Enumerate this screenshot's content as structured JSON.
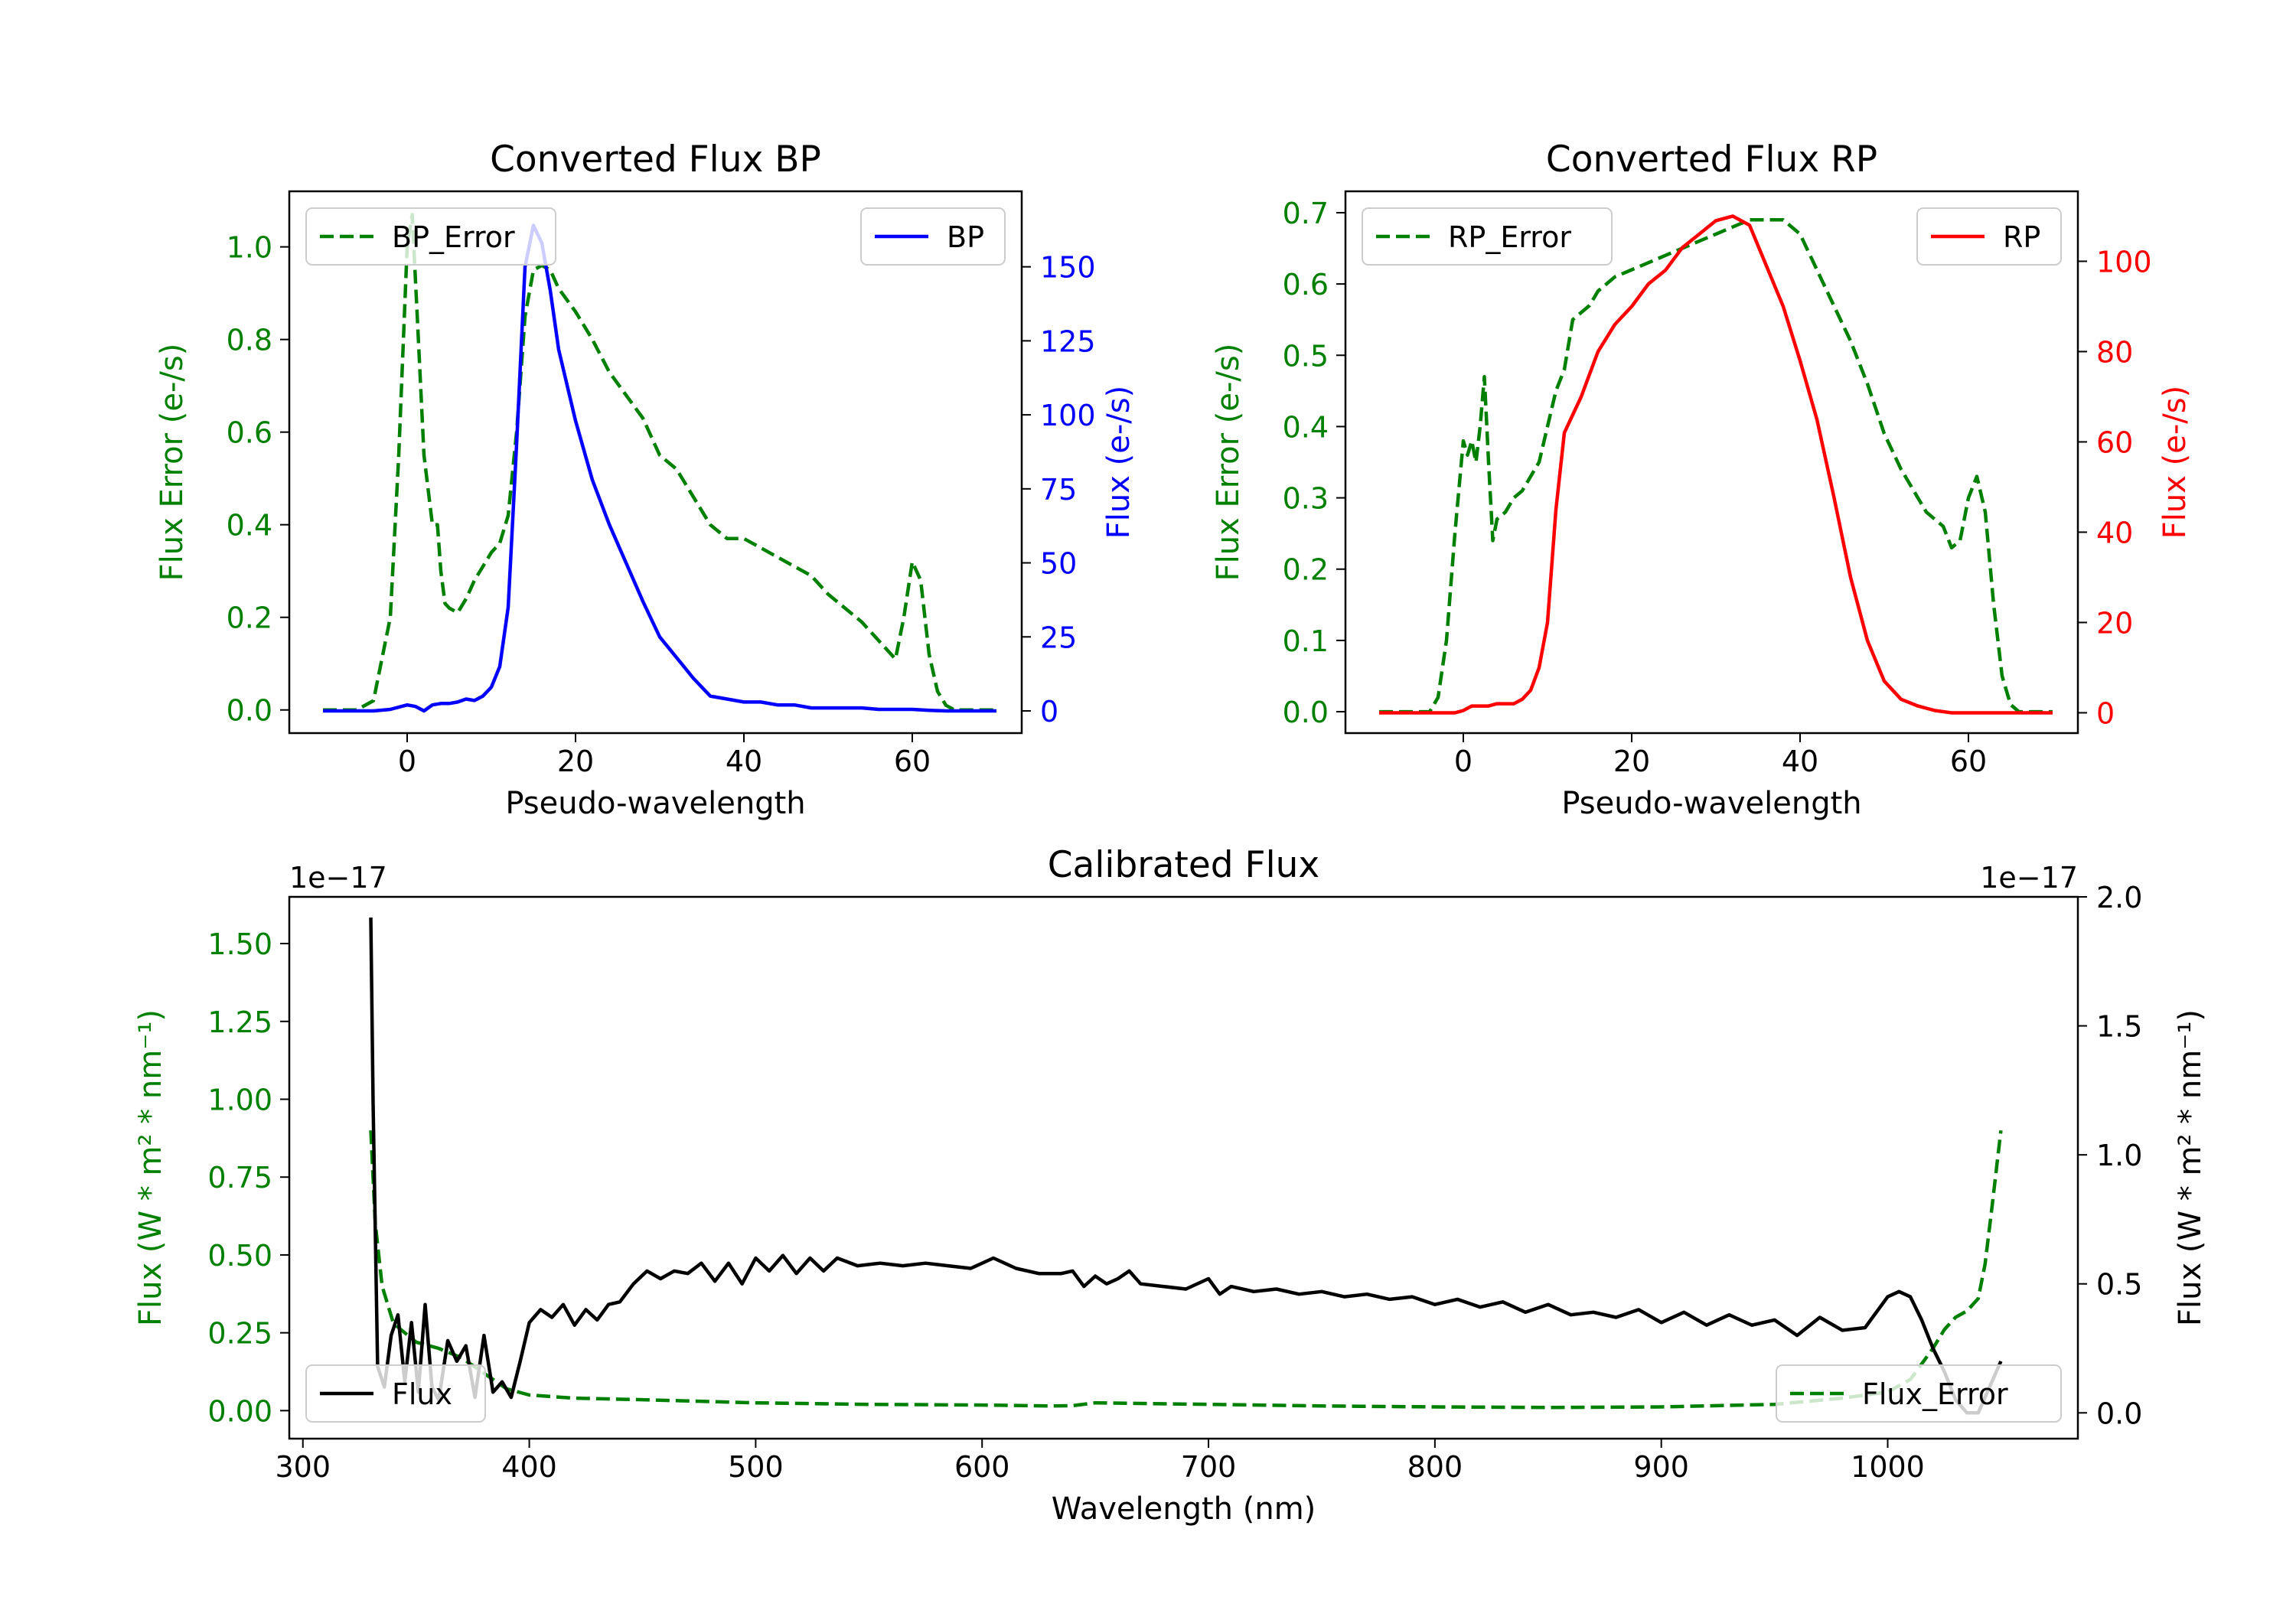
{
  "figure": {
    "background": "#ffffff"
  },
  "chart_data": [
    {
      "id": "bp",
      "type": "line",
      "title": "Converted Flux BP",
      "xlabel": "Pseudo-wavelength",
      "ylabel_left": "Flux Error (e-/s)",
      "ylabel_right": "Flux (e-/s)",
      "xlim": [
        -14,
        73
      ],
      "ylim_left": [
        -0.05,
        1.12
      ],
      "ylim_right": [
        -7.5,
        175.5
      ],
      "xticks": [
        0,
        20,
        40,
        60
      ],
      "xtick_labels": [
        "0",
        "20",
        "40",
        "60"
      ],
      "yticks_left": [
        0.0,
        0.2,
        0.4,
        0.6,
        0.8,
        1.0
      ],
      "ytick_labels_left": [
        "0.0",
        "0.2",
        "0.4",
        "0.6",
        "0.8",
        "1.0"
      ],
      "yticks_right": [
        0,
        25,
        50,
        75,
        100,
        125,
        150
      ],
      "ytick_labels_right": [
        "0",
        "25",
        "50",
        "75",
        "100",
        "125",
        "150"
      ],
      "left_color": "#008000",
      "right_color": "#0000ff",
      "series": [
        {
          "name": "BP_Error",
          "axis": "left",
          "color": "#008000",
          "style": "dashed",
          "x": [
            -10,
            -6,
            -4,
            -2,
            -1,
            0,
            0.6,
            1.2,
            2,
            3,
            3.6,
            4,
            4.5,
            5,
            6,
            7,
            8,
            9,
            10,
            11,
            12,
            13,
            14,
            15,
            16,
            17,
            18,
            20,
            22,
            24,
            26,
            28,
            30,
            32,
            34,
            36,
            38,
            40,
            42,
            44,
            46,
            48,
            50,
            52,
            54,
            56,
            57,
            58,
            59,
            60,
            61,
            62,
            63,
            64,
            65,
            66,
            68,
            70
          ],
          "y": [
            0.0,
            0.0,
            0.02,
            0.2,
            0.55,
            1.0,
            1.07,
            0.85,
            0.55,
            0.4,
            0.4,
            0.3,
            0.23,
            0.22,
            0.21,
            0.24,
            0.28,
            0.31,
            0.34,
            0.36,
            0.42,
            0.6,
            0.85,
            0.95,
            0.96,
            0.95,
            0.91,
            0.86,
            0.8,
            0.73,
            0.68,
            0.63,
            0.55,
            0.52,
            0.46,
            0.4,
            0.37,
            0.37,
            0.35,
            0.33,
            0.31,
            0.29,
            0.25,
            0.22,
            0.19,
            0.15,
            0.13,
            0.11,
            0.2,
            0.32,
            0.28,
            0.12,
            0.04,
            0.01,
            0.0,
            0.0,
            0.0,
            0.0
          ]
        },
        {
          "name": "BP",
          "axis": "right",
          "color": "#0000ff",
          "style": "solid",
          "x": [
            -10,
            -4,
            -2,
            0,
            1,
            2,
            3,
            4,
            5,
            6,
            7,
            8,
            9,
            10,
            11,
            12,
            13,
            14,
            15,
            16,
            17,
            18,
            20,
            22,
            24,
            26,
            28,
            30,
            32,
            34,
            36,
            38,
            40,
            42,
            44,
            46,
            48,
            50,
            52,
            54,
            56,
            58,
            60,
            62,
            64,
            66,
            70
          ],
          "y": [
            0,
            0,
            0.5,
            2,
            1.5,
            0,
            2,
            2.5,
            2.5,
            3,
            4,
            3.5,
            5,
            8,
            15,
            35,
            90,
            150,
            164,
            158,
            142,
            122,
            98,
            78,
            63,
            50,
            37,
            25,
            18,
            11,
            5,
            4,
            3,
            3,
            2,
            2,
            1,
            1,
            1,
            1,
            0.5,
            0.5,
            0.5,
            0.2,
            0,
            0,
            0
          ]
        }
      ],
      "legends": [
        {
          "position": "upper left",
          "entries": [
            "BP_Error"
          ]
        },
        {
          "position": "upper right",
          "entries": [
            "BP"
          ]
        }
      ]
    },
    {
      "id": "rp",
      "type": "line",
      "title": "Converted Flux RP",
      "xlabel": "Pseudo-wavelength",
      "ylabel_left": "Flux Error (e-/s)",
      "ylabel_right": "Flux (e-/s)",
      "xlim": [
        -14,
        73
      ],
      "ylim_left": [
        -0.03,
        0.73
      ],
      "ylim_right": [
        -4.5,
        115.5
      ],
      "xticks": [
        0,
        20,
        40,
        60
      ],
      "xtick_labels": [
        "0",
        "20",
        "40",
        "60"
      ],
      "yticks_left": [
        0.0,
        0.1,
        0.2,
        0.3,
        0.4,
        0.5,
        0.6,
        0.7
      ],
      "ytick_labels_left": [
        "0.0",
        "0.1",
        "0.2",
        "0.3",
        "0.4",
        "0.5",
        "0.6",
        "0.7"
      ],
      "yticks_right": [
        0,
        20,
        40,
        60,
        80,
        100
      ],
      "ytick_labels_right": [
        "0",
        "20",
        "40",
        "60",
        "80",
        "100"
      ],
      "left_color": "#008000",
      "right_color": "#ff0000",
      "series": [
        {
          "name": "RP_Error",
          "axis": "left",
          "color": "#008000",
          "style": "dashed",
          "x": [
            -10,
            -5,
            -4,
            -3,
            -2,
            -1,
            0,
            0.5,
            1,
            1.5,
            2,
            2.5,
            3,
            3.5,
            4,
            5,
            6,
            7,
            8,
            9,
            10,
            11,
            12,
            13,
            14,
            15,
            16,
            17,
            18,
            20,
            22,
            24,
            26,
            28,
            30,
            32,
            34,
            36,
            38,
            40,
            42,
            44,
            46,
            48,
            50,
            52,
            54,
            55,
            56,
            57,
            58,
            59,
            60,
            61,
            62,
            63,
            64,
            65,
            66,
            68,
            70
          ],
          "y": [
            0.0,
            0.0,
            0.0,
            0.02,
            0.1,
            0.25,
            0.38,
            0.36,
            0.38,
            0.35,
            0.4,
            0.47,
            0.35,
            0.24,
            0.27,
            0.28,
            0.3,
            0.31,
            0.33,
            0.35,
            0.4,
            0.45,
            0.48,
            0.55,
            0.56,
            0.57,
            0.59,
            0.6,
            0.61,
            0.62,
            0.63,
            0.64,
            0.65,
            0.66,
            0.67,
            0.68,
            0.69,
            0.69,
            0.69,
            0.67,
            0.62,
            0.57,
            0.52,
            0.46,
            0.39,
            0.34,
            0.3,
            0.28,
            0.27,
            0.26,
            0.23,
            0.24,
            0.3,
            0.33,
            0.28,
            0.15,
            0.05,
            0.01,
            0.0,
            0.0,
            0.0
          ]
        },
        {
          "name": "RP",
          "axis": "right",
          "color": "#ff0000",
          "style": "solid",
          "x": [
            -10,
            -3,
            -1,
            0,
            1,
            2,
            3,
            4,
            5,
            6,
            7,
            8,
            9,
            10,
            11,
            12,
            13,
            14,
            15,
            16,
            18,
            20,
            22,
            24,
            26,
            28,
            30,
            32,
            33,
            34,
            36,
            38,
            40,
            42,
            44,
            46,
            48,
            50,
            52,
            54,
            56,
            58,
            60,
            62,
            66,
            70
          ],
          "y": [
            0,
            0,
            0,
            0.5,
            1.5,
            1.5,
            1.5,
            2,
            2,
            2,
            3,
            5,
            10,
            20,
            45,
            62,
            66,
            70,
            75,
            80,
            86,
            90,
            95,
            98,
            103,
            106,
            109,
            110,
            109,
            108,
            99,
            90,
            78,
            65,
            48,
            30,
            16,
            7,
            3,
            1.5,
            0.5,
            0,
            0,
            0,
            0,
            0
          ]
        }
      ],
      "legends": [
        {
          "position": "upper left",
          "entries": [
            "RP_Error"
          ]
        },
        {
          "position": "upper right",
          "entries": [
            "RP"
          ]
        }
      ]
    },
    {
      "id": "cal",
      "type": "line",
      "title": "Calibrated Flux",
      "xlabel": "Wavelength (nm)",
      "ylabel_left": "Flux (W * m² * nm⁻¹)",
      "ylabel_right": "Flux (W * m² * nm⁻¹)",
      "offset_left": "1e−17",
      "offset_right": "1e−17",
      "xlim": [
        294,
        1084
      ],
      "ylim_left": [
        -0.09,
        1.65
      ],
      "ylim_right": [
        -0.1,
        2.0
      ],
      "xticks": [
        300,
        400,
        500,
        600,
        700,
        800,
        900,
        1000
      ],
      "xtick_labels": [
        "300",
        "400",
        "500",
        "600",
        "700",
        "800",
        "900",
        "1000"
      ],
      "yticks_left": [
        0.0,
        0.25,
        0.5,
        0.75,
        1.0,
        1.25,
        1.5
      ],
      "ytick_labels_left": [
        "0.00",
        "0.25",
        "0.50",
        "0.75",
        "1.00",
        "1.25",
        "1.50"
      ],
      "yticks_right": [
        0.0,
        0.5,
        1.0,
        1.5,
        2.0
      ],
      "ytick_labels_right": [
        "0.0",
        "0.5",
        "1.0",
        "1.5",
        "2.0"
      ],
      "left_color": "#008000",
      "right_color": "#000000",
      "series": [
        {
          "name": "Flux_Error",
          "axis": "left",
          "color": "#008000",
          "style": "dashed",
          "x": [
            330,
            332,
            335,
            340,
            350,
            360,
            370,
            380,
            390,
            400,
            420,
            450,
            500,
            550,
            600,
            630,
            640,
            650,
            700,
            750,
            800,
            850,
            900,
            950,
            980,
            1000,
            1010,
            1020,
            1025,
            1030,
            1035,
            1040,
            1043,
            1046,
            1050
          ],
          "y": [
            0.9,
            0.6,
            0.4,
            0.28,
            0.22,
            0.2,
            0.17,
            0.12,
            0.07,
            0.05,
            0.04,
            0.035,
            0.025,
            0.02,
            0.018,
            0.015,
            0.016,
            0.025,
            0.02,
            0.015,
            0.012,
            0.01,
            0.012,
            0.02,
            0.04,
            0.06,
            0.1,
            0.2,
            0.26,
            0.3,
            0.32,
            0.36,
            0.47,
            0.65,
            0.9
          ]
        },
        {
          "name": "Flux",
          "axis": "right",
          "color": "#000000",
          "style": "solid",
          "x": [
            330,
            331,
            333,
            336,
            339,
            342,
            345,
            348,
            351,
            354,
            357,
            360,
            364,
            368,
            372,
            376,
            380,
            384,
            388,
            392,
            396,
            400,
            405,
            410,
            415,
            420,
            425,
            430,
            435,
            440,
            446,
            452,
            458,
            464,
            470,
            476,
            482,
            488,
            494,
            500,
            506,
            512,
            518,
            524,
            530,
            536,
            545,
            555,
            565,
            575,
            585,
            595,
            605,
            615,
            625,
            635,
            640,
            645,
            650,
            655,
            660,
            665,
            670,
            680,
            690,
            700,
            705,
            710,
            720,
            730,
            740,
            750,
            760,
            770,
            780,
            790,
            800,
            810,
            820,
            830,
            840,
            850,
            860,
            870,
            880,
            890,
            900,
            910,
            920,
            930,
            940,
            950,
            960,
            970,
            980,
            990,
            1000,
            1005,
            1010,
            1015,
            1020,
            1025,
            1030,
            1035,
            1040,
            1045,
            1050
          ],
          "y": [
            1.92,
            1.2,
            0.18,
            0.1,
            0.3,
            0.38,
            0.12,
            0.35,
            0.08,
            0.42,
            0.1,
            0.05,
            0.28,
            0.2,
            0.26,
            0.06,
            0.3,
            0.08,
            0.12,
            0.06,
            0.2,
            0.35,
            0.4,
            0.37,
            0.42,
            0.34,
            0.4,
            0.36,
            0.42,
            0.43,
            0.5,
            0.55,
            0.52,
            0.55,
            0.54,
            0.58,
            0.51,
            0.58,
            0.5,
            0.6,
            0.55,
            0.61,
            0.54,
            0.6,
            0.55,
            0.6,
            0.57,
            0.58,
            0.57,
            0.58,
            0.57,
            0.56,
            0.6,
            0.56,
            0.54,
            0.54,
            0.55,
            0.49,
            0.53,
            0.5,
            0.52,
            0.55,
            0.5,
            0.49,
            0.48,
            0.52,
            0.46,
            0.49,
            0.47,
            0.48,
            0.46,
            0.47,
            0.45,
            0.46,
            0.44,
            0.45,
            0.42,
            0.44,
            0.41,
            0.43,
            0.39,
            0.42,
            0.38,
            0.39,
            0.37,
            0.4,
            0.35,
            0.39,
            0.34,
            0.38,
            0.34,
            0.36,
            0.3,
            0.37,
            0.32,
            0.33,
            0.45,
            0.47,
            0.45,
            0.36,
            0.25,
            0.16,
            0.05,
            0.0,
            0.0,
            0.1,
            0.2
          ]
        }
      ],
      "legends": [
        {
          "position": "lower left",
          "entries": [
            "Flux"
          ]
        },
        {
          "position": "lower right",
          "entries": [
            "Flux_Error"
          ]
        }
      ]
    }
  ]
}
